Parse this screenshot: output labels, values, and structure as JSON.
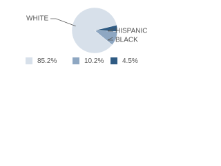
{
  "chart_data": {
    "type": "pie",
    "categories": [
      "WHITE",
      "BLACK",
      "HISPANIC"
    ],
    "values": [
      85.2,
      10.2,
      4.5
    ],
    "value_labels": [
      "85.2%",
      "10.2%",
      "4.5%"
    ],
    "colors": [
      "#d7e0ea",
      "#8ea7c2",
      "#2f5b83"
    ]
  }
}
